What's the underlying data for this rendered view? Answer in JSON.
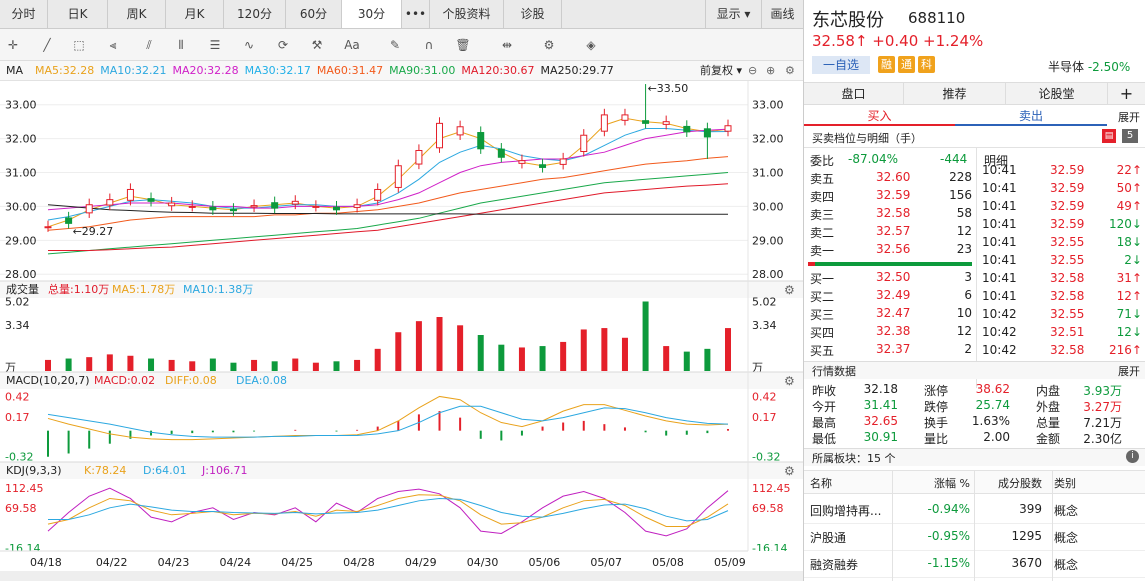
{
  "nav": {
    "tabs": [
      "分时",
      "日K",
      "周K",
      "月K",
      "120分",
      "60分",
      "30分",
      "•••",
      "个股资料",
      "诊股"
    ],
    "right": [
      "显示 ▾",
      "画线"
    ]
  },
  "ma": {
    "label": "MA",
    "items": [
      {
        "t": "MA5:32.28",
        "c": "#e9a21c"
      },
      {
        "t": "MA10:32.21",
        "c": "#2ca8e0"
      },
      {
        "t": "MA20:32.28",
        "c": "#d021c8"
      },
      {
        "t": "MA30:32.17",
        "c": "#22b0e8"
      },
      {
        "t": "MA60:31.47",
        "c": "#f25a1c"
      },
      {
        "t": "MA90:31.00",
        "c": "#19a84a"
      },
      {
        "t": "MA120:30.67",
        "c": "#e01a2a"
      },
      {
        "t": "MA250:29.77",
        "c": "#222222"
      }
    ],
    "fq": "前复权 ▾"
  },
  "price_axis": [
    "33.00",
    "32.00",
    "31.00",
    "30.00",
    "29.00",
    "28.00"
  ],
  "annot": {
    "hi": "33.50",
    "lo": "29.27"
  },
  "vol": {
    "title": "成交量",
    "items": [
      {
        "t": "总量:1.10万",
        "c": "#e01a2a"
      },
      {
        "t": "MA5:1.78万",
        "c": "#e9a21c"
      },
      {
        "t": "MA10:1.38万",
        "c": "#2ca8e0"
      }
    ],
    "axis": [
      "5.02",
      "3.34",
      "万"
    ]
  },
  "macd": {
    "title": "MACD(10,20,7)",
    "items": [
      {
        "t": "MACD:0.02",
        "c": "#e01a2a"
      },
      {
        "t": "DIFF:0.08",
        "c": "#e9a21c"
      },
      {
        "t": "DEA:0.08",
        "c": "#2ca8e0"
      }
    ],
    "axis": [
      "0.42",
      "0.17",
      "-0.32"
    ]
  },
  "kdj": {
    "title": "KDJ(9,3,3)",
    "items": [
      {
        "t": "K:78.24",
        "c": "#e9a21c"
      },
      {
        "t": "D:64.01",
        "c": "#2ca8e0"
      },
      {
        "t": "J:106.71",
        "c": "#c020c0"
      }
    ],
    "axis": [
      "112.45",
      "69.58",
      "-16.14"
    ]
  },
  "dates": [
    "04/18",
    "04/22",
    "04/23",
    "04/24",
    "04/25",
    "04/28",
    "04/29",
    "04/30",
    "05/06",
    "05/07",
    "05/08",
    "05/09"
  ],
  "stock": {
    "name": "东芯股份",
    "code": "688110",
    "price": "32.58↑",
    "chg": "+0.40",
    "pct": "+1.24%",
    "watch": "一自选",
    "tags": [
      "融",
      "通",
      "科"
    ],
    "sector": "半导体",
    "sector_pct": "-2.50%"
  },
  "rtabs": [
    "盘口",
    "推荐",
    "论股堂",
    "+"
  ],
  "buy": "买入",
  "sell": "卖出",
  "book_title": "买卖档位与明细（手）",
  "book_count": "5",
  "weibi": {
    "label": "委比",
    "v": "-87.04%",
    "d": "-444"
  },
  "mingxi": "明细",
  "asks": [
    [
      "卖五",
      "32.60",
      "228"
    ],
    [
      "卖四",
      "32.59",
      "156"
    ],
    [
      "卖三",
      "32.58",
      "58"
    ],
    [
      "卖二",
      "32.57",
      "12"
    ],
    [
      "卖一",
      "32.56",
      "23"
    ]
  ],
  "bids": [
    [
      "买一",
      "32.50",
      "3"
    ],
    [
      "买二",
      "32.49",
      "6"
    ],
    [
      "买三",
      "32.47",
      "10"
    ],
    [
      "买四",
      "32.38",
      "12"
    ],
    [
      "买五",
      "32.37",
      "2"
    ]
  ],
  "ticks": [
    [
      "10:41",
      "32.59",
      "22↑",
      "r"
    ],
    [
      "10:41",
      "32.59",
      "50↑",
      "r"
    ],
    [
      "10:41",
      "32.59",
      "49↑",
      "r"
    ],
    [
      "10:41",
      "32.59",
      "120↓",
      "g"
    ],
    [
      "10:41",
      "32.55",
      "18↓",
      "g"
    ],
    [
      "10:41",
      "32.55",
      "2↓",
      "g"
    ],
    [
      "10:41",
      "32.58",
      "31↑",
      "r"
    ],
    [
      "10:41",
      "32.58",
      "12↑",
      "r"
    ],
    [
      "10:42",
      "32.55",
      "71↓",
      "g"
    ],
    [
      "10:42",
      "32.51",
      "12↓",
      "g"
    ],
    [
      "10:42",
      "32.58",
      "216↑",
      "r"
    ]
  ],
  "expand": "展开",
  "market_title": "行情数据",
  "market": [
    [
      [
        "昨收",
        "32.18",
        ""
      ],
      [
        "涨停",
        "38.62",
        "r"
      ],
      [
        "内盘",
        "3.93万",
        "g"
      ]
    ],
    [
      [
        "今开",
        "31.41",
        "g"
      ],
      [
        "跌停",
        "25.74",
        "g"
      ],
      [
        "外盘",
        "3.27万",
        "r"
      ]
    ],
    [
      [
        "最高",
        "32.65",
        "r"
      ],
      [
        "换手",
        "1.63%",
        ""
      ],
      [
        "总量",
        "7.21万",
        ""
      ]
    ],
    [
      [
        "最低",
        "30.91",
        "g"
      ],
      [
        "量比",
        "2.00",
        ""
      ],
      [
        "金额",
        "2.30亿",
        ""
      ]
    ]
  ],
  "sector_title": "所属板块：15 个",
  "sector_cols": [
    "名称",
    "涨幅 %",
    "成分股数",
    "类别"
  ],
  "sectors": [
    [
      "回购增持再...",
      "-0.94%",
      "399",
      "概念"
    ],
    [
      "沪股通",
      "-0.95%",
      "1295",
      "概念"
    ],
    [
      "融资融券",
      "-1.15%",
      "3670",
      "概念"
    ]
  ],
  "chart_data": {
    "type": "candlestick",
    "price_range": [
      27.8,
      33.7
    ],
    "dates": [
      "04/18",
      "04/22",
      "04/23",
      "04/24",
      "04/25",
      "04/28",
      "04/29",
      "04/30",
      "05/06",
      "05/07",
      "05/08",
      "05/09"
    ],
    "ma_lines": {
      "MA5": [
        29.4,
        29.6,
        29.9,
        30.1,
        30.3,
        30.2,
        30.05,
        30.0,
        29.95,
        29.9,
        30.0,
        30.05,
        30.1,
        30.0,
        29.95,
        30.0,
        30.3,
        30.8,
        31.4,
        32.0,
        32.2,
        32.0,
        31.6,
        31.3,
        31.2,
        31.3,
        31.8,
        32.4,
        32.6,
        32.5,
        32.45,
        32.3,
        32.2,
        32.28
      ],
      "MA10": [
        29.6,
        29.7,
        29.85,
        30.0,
        30.15,
        30.2,
        30.15,
        30.1,
        30.0,
        29.95,
        29.95,
        30.0,
        30.05,
        30.05,
        30.0,
        30.0,
        30.1,
        30.4,
        30.8,
        31.3,
        31.6,
        31.8,
        31.7,
        31.5,
        31.4,
        31.35,
        31.5,
        31.8,
        32.1,
        32.3,
        32.3,
        32.25,
        32.2,
        32.21
      ],
      "MA20": [
        29.9,
        29.95,
        30.0,
        30.05,
        30.1,
        30.1,
        30.1,
        30.05,
        30.0,
        30.0,
        29.95,
        29.95,
        30.0,
        30.0,
        30.0,
        30.0,
        30.05,
        30.2,
        30.4,
        30.7,
        31.0,
        31.2,
        31.3,
        31.35,
        31.4,
        31.4,
        31.5,
        31.6,
        31.8,
        32.0,
        32.1,
        32.2,
        32.25,
        32.28
      ],
      "MA60": [
        29.3,
        29.35,
        29.4,
        29.5,
        29.6,
        29.65,
        29.7,
        29.7,
        29.7,
        29.7,
        29.7,
        29.75,
        29.75,
        29.8,
        29.8,
        29.85,
        29.9,
        30.0,
        30.1,
        30.25,
        30.4,
        30.5,
        30.6,
        30.7,
        30.8,
        30.85,
        30.95,
        31.05,
        31.15,
        31.25,
        31.3,
        31.35,
        31.42,
        31.47
      ],
      "MA90": [
        28.6,
        28.65,
        28.7,
        28.75,
        28.8,
        28.85,
        28.9,
        28.95,
        29.0,
        29.05,
        29.1,
        29.15,
        29.2,
        29.25,
        29.3,
        29.35,
        29.45,
        29.55,
        29.65,
        29.8,
        29.95,
        30.1,
        30.2,
        30.3,
        30.4,
        30.5,
        30.6,
        30.7,
        30.75,
        30.8,
        30.85,
        30.9,
        30.95,
        31.0
      ],
      "MA120": [
        28.7,
        28.7,
        28.7,
        28.72,
        28.75,
        28.78,
        28.8,
        28.85,
        28.9,
        28.95,
        29.0,
        29.05,
        29.1,
        29.15,
        29.2,
        29.25,
        29.3,
        29.4,
        29.5,
        29.6,
        29.7,
        29.8,
        29.9,
        30.0,
        30.1,
        30.2,
        30.3,
        30.4,
        30.45,
        30.5,
        30.55,
        30.6,
        30.63,
        30.67
      ],
      "MA250": [
        30.05,
        30.0,
        29.95,
        29.9,
        29.88,
        29.85,
        29.83,
        29.82,
        29.8,
        29.8,
        29.8,
        29.79,
        29.79,
        29.79,
        29.78,
        29.78,
        29.78,
        29.78,
        29.78,
        29.78,
        29.78,
        29.77,
        29.77,
        29.77,
        29.77,
        29.77,
        29.77,
        29.77,
        29.77,
        29.77,
        29.77,
        29.77,
        29.77,
        29.77
      ]
    }
  }
}
